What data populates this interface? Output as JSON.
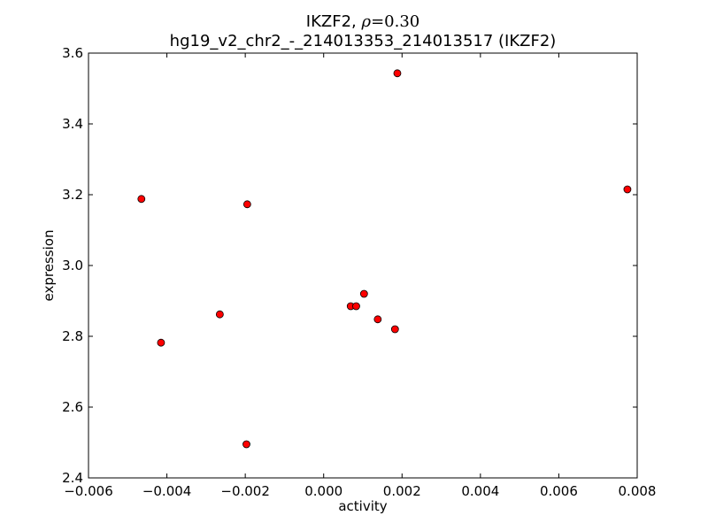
{
  "chart_data": {
    "type": "scatter",
    "title_line1_prefix": "IKZF2, ",
    "title_line1_rho": "ρ",
    "title_line1_value": "=0.30",
    "title_line2": "hg19_v2_chr2_-_214013353_214013517 (IKZF2)",
    "xlabel": "activity",
    "ylabel": "expression",
    "xlim": [
      -0.006,
      0.008
    ],
    "ylim": [
      2.4,
      3.6
    ],
    "xticks": [
      -0.006,
      -0.004,
      -0.002,
      0.0,
      0.002,
      0.004,
      0.006,
      0.008
    ],
    "xtick_labels": [
      "−0.006",
      "−0.004",
      "−0.002",
      "0.000",
      "0.002",
      "0.004",
      "0.006",
      "0.008"
    ],
    "yticks": [
      2.4,
      2.6,
      2.8,
      3.0,
      3.2,
      3.4,
      3.6
    ],
    "ytick_labels": [
      "2.4",
      "2.6",
      "2.8",
      "3.0",
      "3.2",
      "3.4",
      "3.6"
    ],
    "grid": false,
    "marker_color": "#ff0000",
    "marker_edge_color": "#000000",
    "points": [
      {
        "x": -0.00465,
        "y": 3.188
      },
      {
        "x": -0.00415,
        "y": 2.782
      },
      {
        "x": -0.00265,
        "y": 2.862
      },
      {
        "x": -0.00195,
        "y": 3.173
      },
      {
        "x": -0.00197,
        "y": 2.495
      },
      {
        "x": 0.00069,
        "y": 2.885
      },
      {
        "x": 0.00083,
        "y": 2.885
      },
      {
        "x": 0.00103,
        "y": 2.92
      },
      {
        "x": 0.00138,
        "y": 2.848
      },
      {
        "x": 0.00182,
        "y": 2.82
      },
      {
        "x": 0.00188,
        "y": 3.543
      },
      {
        "x": 0.00775,
        "y": 3.215
      }
    ]
  }
}
